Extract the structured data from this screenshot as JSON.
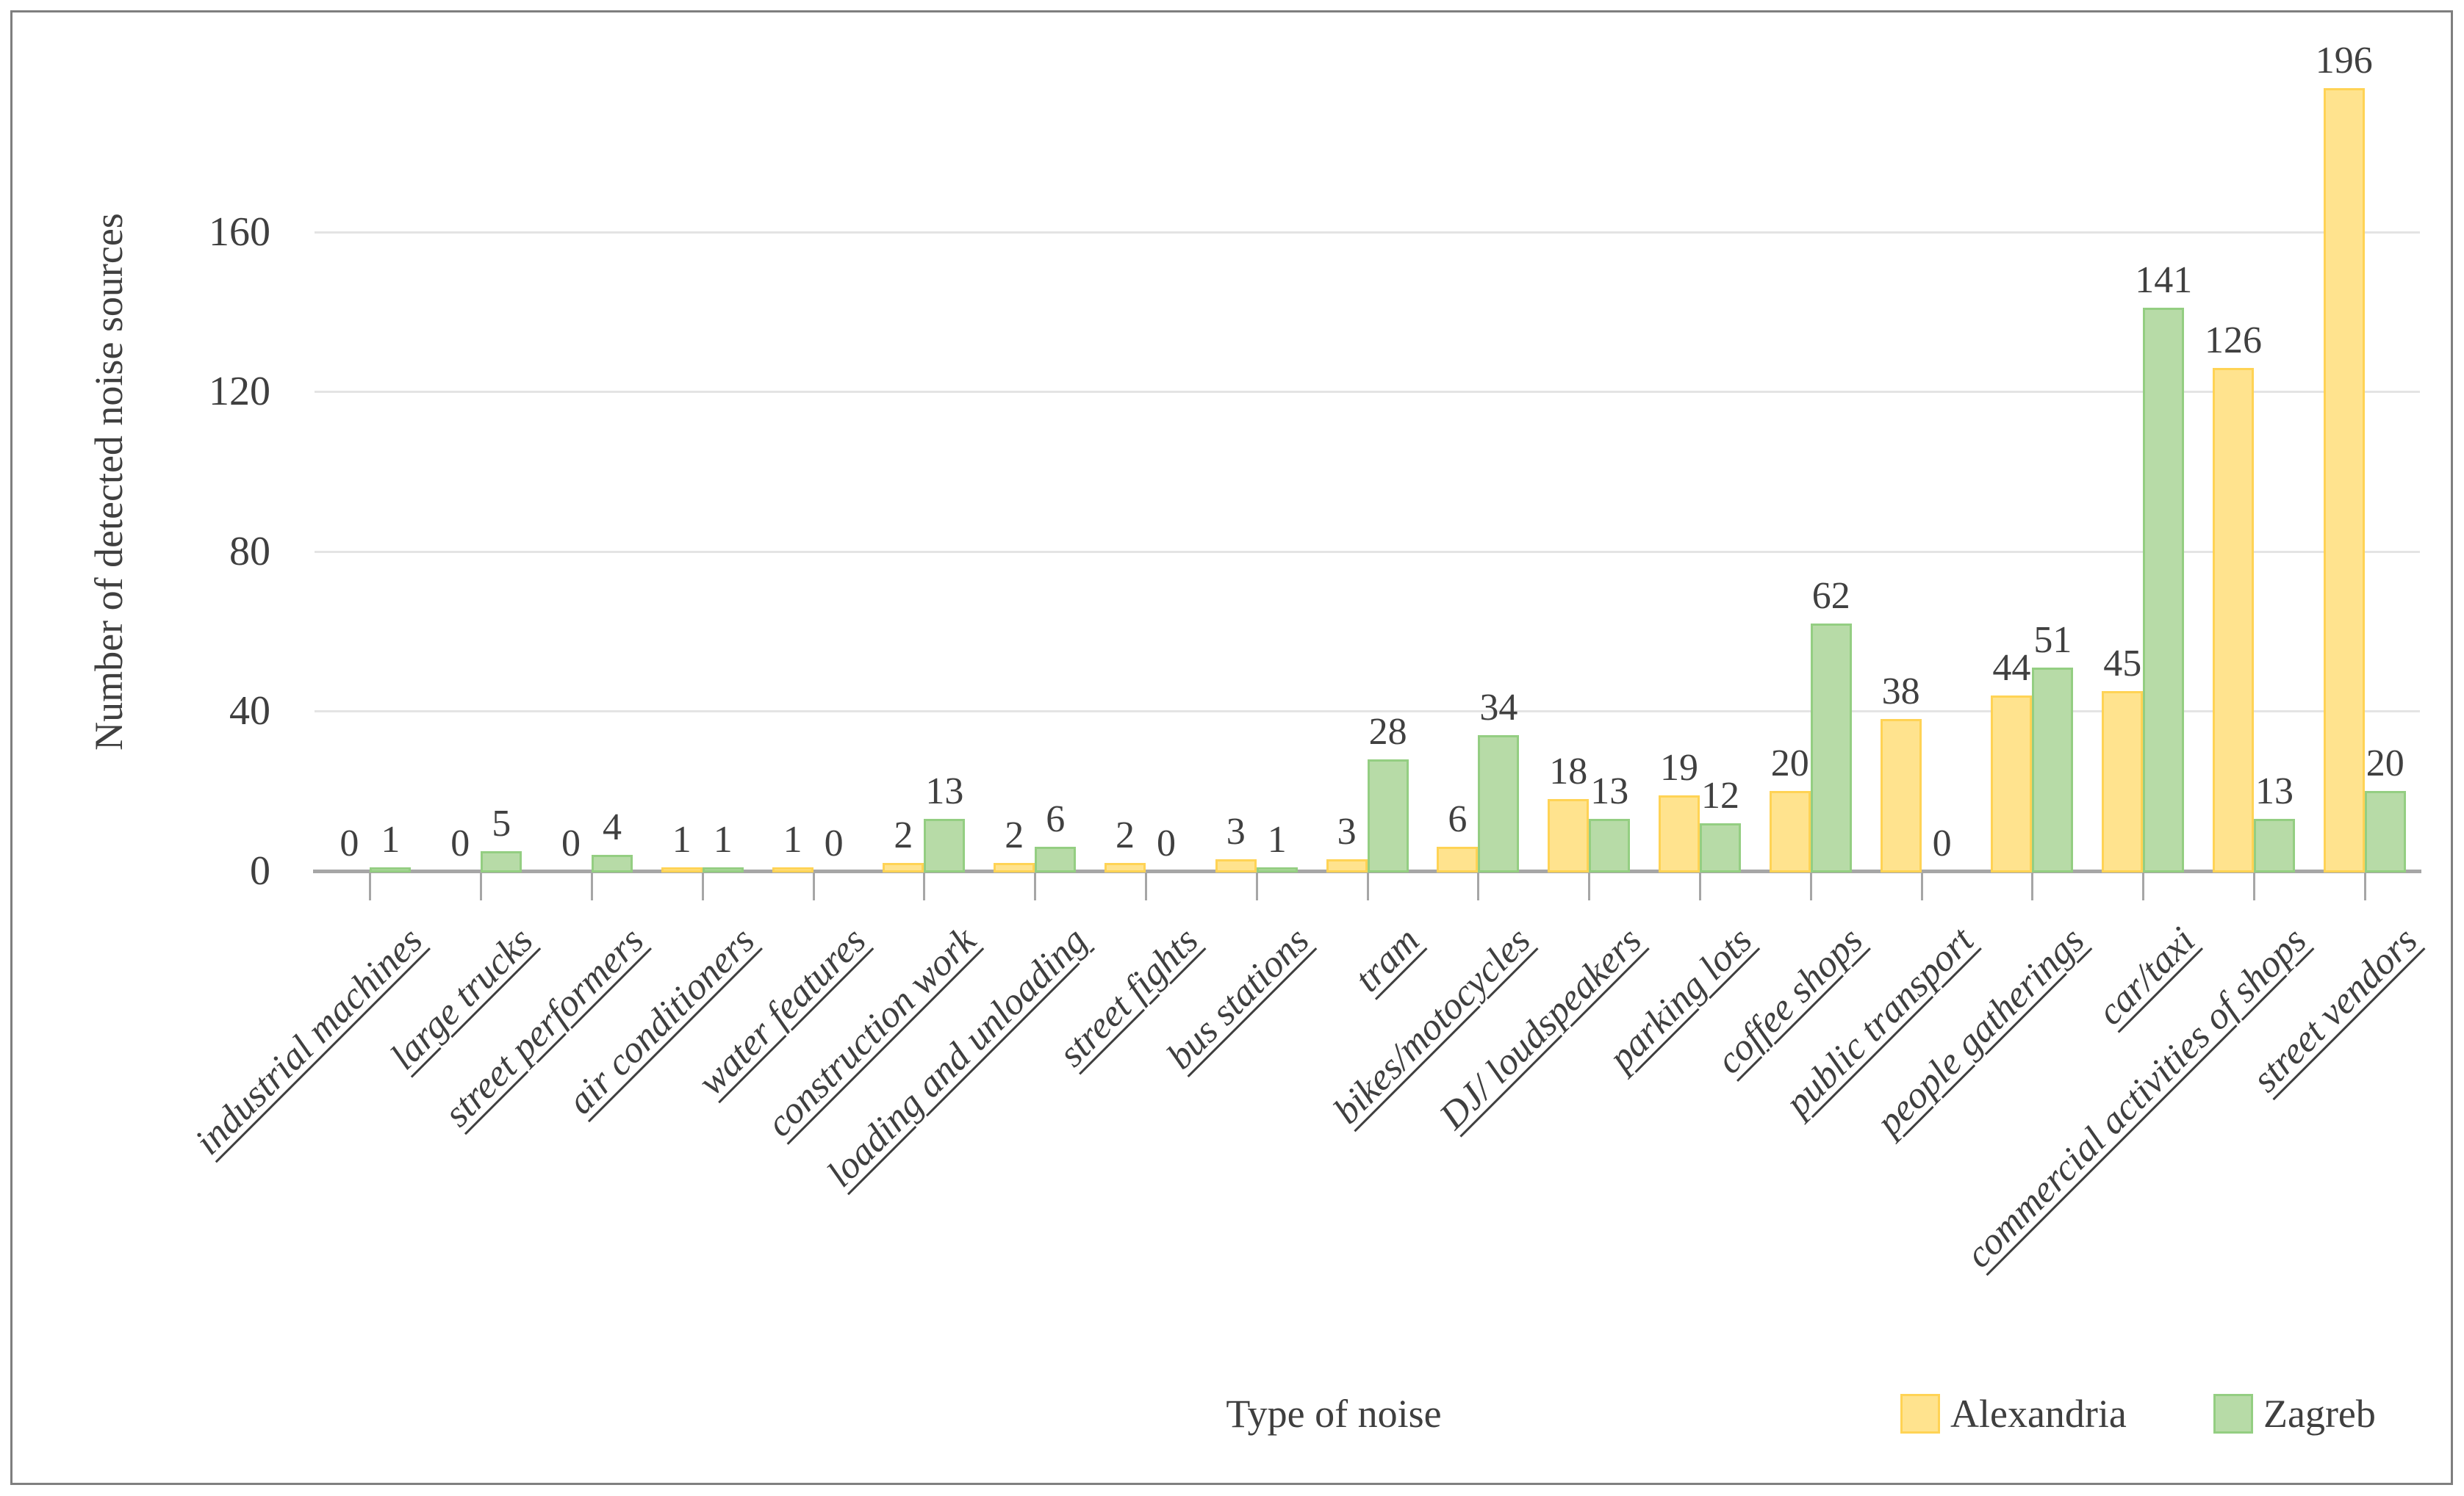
{
  "titles": {
    "x": "Type of noise",
    "y": "Number of detected noise sources"
  },
  "legend": {
    "items": [
      {
        "label": "Alexandria"
      },
      {
        "label": "Zagreb"
      }
    ]
  },
  "colors": {
    "alexandria_fill": "#FFE38E",
    "alexandria_border": "#FFD355",
    "zagreb_fill": "#B7DBA7",
    "zagreb_border": "#94CE82",
    "axis_line": "#A6A6A6",
    "gridline": "#E4E4E4",
    "text": "#3F3F3F",
    "frame_border": "#7F7F7F"
  },
  "chart_data": {
    "type": "bar",
    "title": "",
    "xlabel": "Type of noise",
    "ylabel": "Number of detected noise sources",
    "categories": [
      "industrial machines",
      "large trucks",
      "street performers",
      "air conditioners",
      "water features",
      "construction work",
      "loading and unloading",
      "street fights",
      "bus stations",
      "tram",
      "bikes/motocycles",
      "DJ/ loudspeakers",
      "parking lots",
      "coffee shops",
      "public transport",
      "people gatherings",
      "car/taxi",
      "commercial activities of shops",
      "street vendors"
    ],
    "series": [
      {
        "name": "Alexandria",
        "fill": "#FFE38E",
        "border": "#FFD355",
        "values": [
          0,
          0,
          0,
          1,
          1,
          2,
          2,
          2,
          3,
          3,
          6,
          18,
          19,
          20,
          38,
          44,
          45,
          126,
          196
        ]
      },
      {
        "name": "Zagreb",
        "fill": "#B7DBA7",
        "border": "#94CE82",
        "values": [
          1,
          5,
          4,
          1,
          0,
          13,
          6,
          0,
          1,
          28,
          34,
          13,
          12,
          62,
          0,
          51,
          141,
          13,
          20
        ]
      }
    ],
    "yticks": [
      0,
      40,
      80,
      120,
      160
    ],
    "ylim": [
      0,
      200
    ],
    "grid": true,
    "bar_labels": true,
    "legend_position": "bottom-right"
  }
}
